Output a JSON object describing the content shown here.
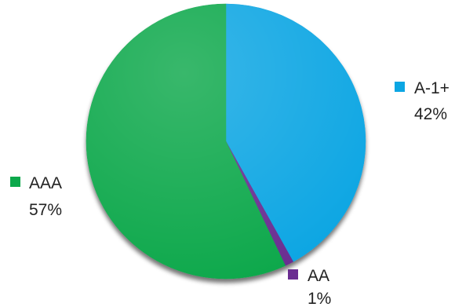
{
  "chart_data": {
    "type": "pie",
    "title": "",
    "slices": [
      {
        "label": "A-1+",
        "value": 42,
        "value_label": "42%",
        "color": "#0ca6e3"
      },
      {
        "label": "AA",
        "value": 1,
        "value_label": "1%",
        "color": "#6a2d91"
      },
      {
        "label": "AAA",
        "value": 57,
        "value_label": "57%",
        "color": "#0ca84b"
      }
    ],
    "start_angle_deg": 0,
    "direction": "clockwise",
    "legend_placement": "beside slices"
  }
}
